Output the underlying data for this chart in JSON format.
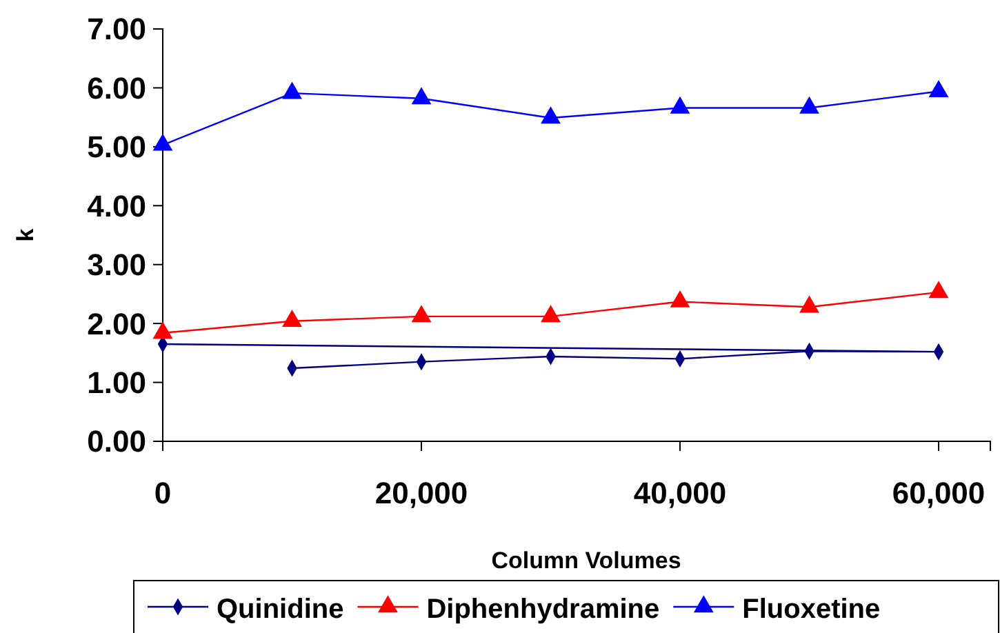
{
  "chart_data": {
    "type": "line",
    "xlabel": "Column Volumes",
    "ylabel": "k",
    "xlim": [
      0,
      64000
    ],
    "xticks": [
      0,
      {
        "value": 20000,
        "label": "20,000"
      },
      {
        "value": 40000,
        "label": "40,000"
      },
      {
        "value": 60000,
        "label": "60,000"
      }
    ],
    "ylim": [
      0,
      7
    ],
    "yticks": [
      {
        "value": 0,
        "label": "0.00"
      },
      {
        "value": 1,
        "label": "1.00"
      },
      {
        "value": 2,
        "label": "2.00"
      },
      {
        "value": 3,
        "label": "3.00"
      },
      {
        "value": 4,
        "label": "4.00"
      },
      {
        "value": 5,
        "label": "5.00"
      },
      {
        "value": 6,
        "label": "6.00"
      },
      {
        "value": 7,
        "label": "7.00"
      }
    ],
    "grid": false,
    "legend": "bottom",
    "series": [
      {
        "name": "Quinidine",
        "color": "#000080",
        "marker": "diamond",
        "x": [
          0,
          60000,
          50000,
          40000,
          30000,
          20000,
          10000
        ],
        "values": [
          1.65,
          1.52,
          1.53,
          1.4,
          1.44,
          1.35,
          1.24
        ]
      },
      {
        "name": "Diphenhydramine",
        "color": "#ff0000",
        "marker": "triangle",
        "x": [
          0,
          10000,
          20000,
          30000,
          40000,
          50000,
          60000
        ],
        "values": [
          1.84,
          2.04,
          2.12,
          2.12,
          2.37,
          2.28,
          2.53
        ]
      },
      {
        "name": "Fluoxetine",
        "color": "#0000ff",
        "marker": "triangle",
        "x": [
          0,
          10000,
          20000,
          30000,
          40000,
          50000,
          60000
        ],
        "values": [
          5.03,
          5.91,
          5.82,
          5.49,
          5.66,
          5.66,
          5.94
        ]
      }
    ]
  }
}
